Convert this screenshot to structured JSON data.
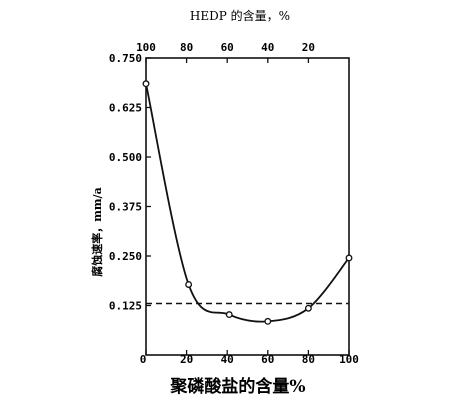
{
  "chart_data": {
    "type": "line",
    "top_axis_title": "HEDP 的含量，%",
    "x_axis_title": "聚磷酸盐的含量%",
    "y_axis_title": "腐蚀速率，mm/a",
    "x_ticks": [
      "0",
      "20",
      "40",
      "60",
      "80",
      "100"
    ],
    "x_tick_values": [
      0,
      20,
      40,
      60,
      80,
      100
    ],
    "top_ticks": [
      "100",
      "80",
      "60",
      "40",
      "20"
    ],
    "top_tick_values": [
      0,
      20,
      40,
      60,
      80
    ],
    "y_ticks": [
      "0.750",
      "0.625",
      "0.500",
      "0.375",
      "0.250",
      "0.125"
    ],
    "y_tick_values": [
      0.75,
      0.625,
      0.5,
      0.375,
      0.25,
      0.125
    ],
    "xlim": [
      0,
      100
    ],
    "ylim": [
      0,
      0.75
    ],
    "grid": false,
    "series": [
      {
        "values": [
          {
            "x": 0,
            "y": 0.685
          },
          {
            "x": 21,
            "y": 0.178
          },
          {
            "x": 41,
            "y": 0.102
          },
          {
            "x": 60,
            "y": 0.085
          },
          {
            "x": 80,
            "y": 0.118
          },
          {
            "x": 100,
            "y": 0.245
          }
        ]
      }
    ],
    "reference_line": {
      "y": 0.13,
      "style": "dashed"
    }
  }
}
